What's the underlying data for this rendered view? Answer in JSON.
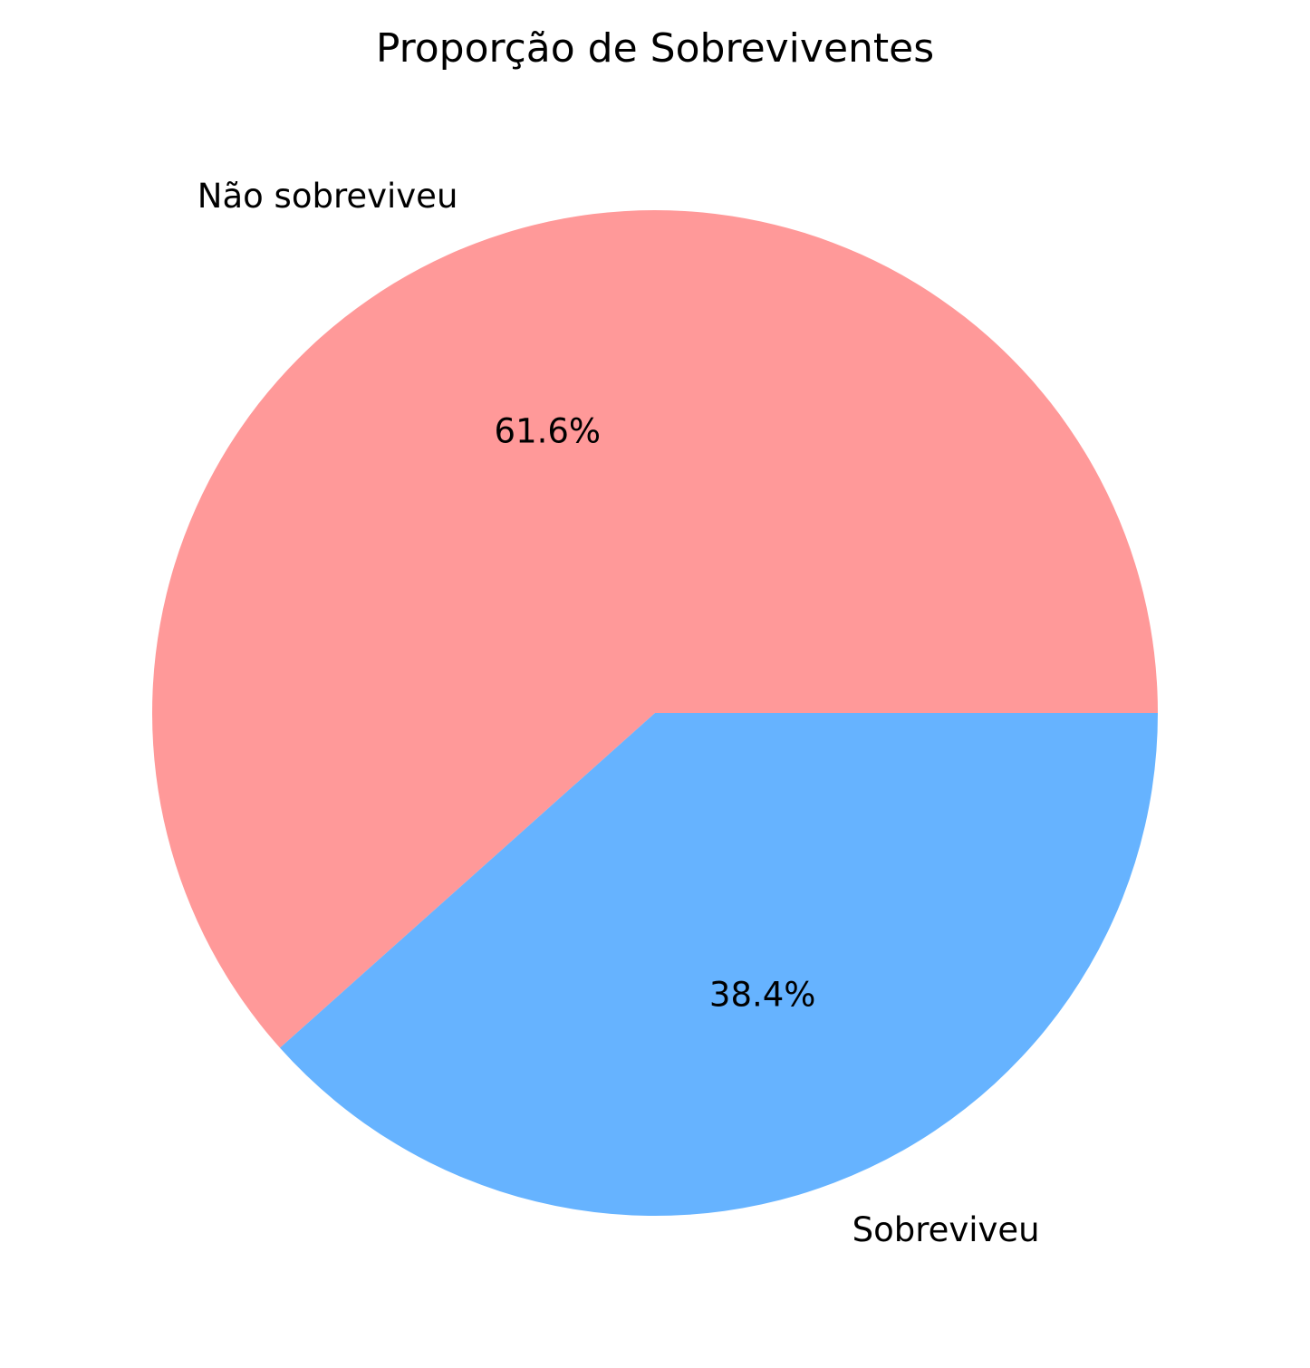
{
  "chart_data": {
    "type": "pie",
    "title": "Proporção de Sobreviventes",
    "slices": [
      {
        "label": "Não sobreviveu",
        "value": 61.6,
        "percent_label": "61.6%",
        "color": "#ff9999"
      },
      {
        "label": "Sobreviveu",
        "value": 38.4,
        "percent_label": "38.4%",
        "color": "#66b3ff"
      }
    ],
    "start_angle_deg": 0,
    "direction": "counterclockwise",
    "legend": "none"
  }
}
